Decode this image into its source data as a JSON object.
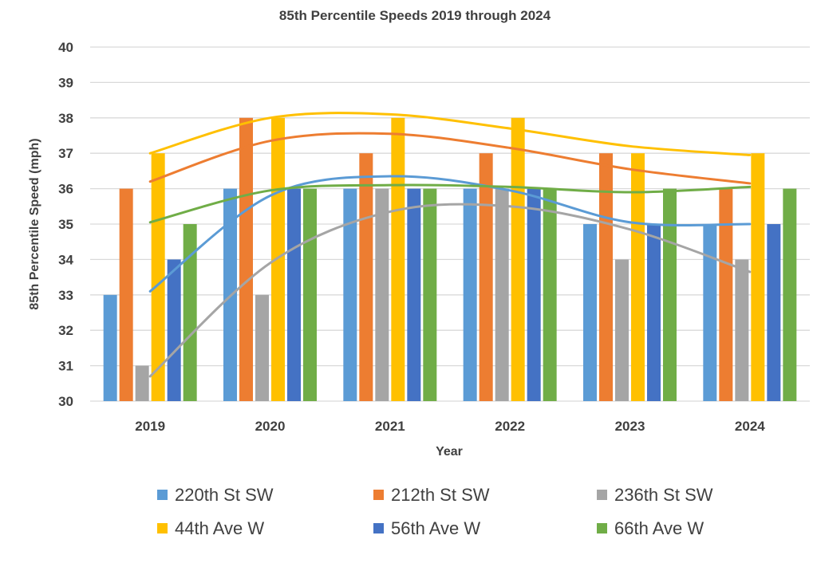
{
  "chart_data": {
    "type": "bar",
    "title": "85th Percentile Speeds 2019 through 2024",
    "xlabel": "Year",
    "ylabel": "85th Percentile Speed (mph)",
    "categories": [
      "2019",
      "2020",
      "2021",
      "2022",
      "2023",
      "2024"
    ],
    "ylim": [
      30,
      40
    ],
    "yticks": [
      30,
      31,
      32,
      33,
      34,
      35,
      36,
      37,
      38,
      39,
      40
    ],
    "grid": true,
    "legend_position": "bottom",
    "series": [
      {
        "name": "220th St SW",
        "color": "#5B9BD5",
        "values": [
          33,
          36,
          36,
          36,
          35,
          35
        ],
        "trend": [
          33.1,
          35.8,
          36.35,
          35.95,
          35.05,
          35.0
        ]
      },
      {
        "name": "212th St SW",
        "color": "#ED7D31",
        "values": [
          36,
          38,
          37,
          37,
          37,
          36
        ],
        "trend": [
          36.2,
          37.35,
          37.55,
          37.15,
          36.55,
          36.15
        ]
      },
      {
        "name": "236th St SW",
        "color": "#A5A5A5",
        "values": [
          31,
          33,
          36,
          36,
          34,
          34
        ],
        "trend": [
          30.7,
          33.9,
          35.35,
          35.5,
          34.85,
          33.65
        ]
      },
      {
        "name": "44th Ave W",
        "color": "#FFC000",
        "values": [
          37,
          38,
          38,
          38,
          37,
          37
        ],
        "trend": [
          37.0,
          38.0,
          38.1,
          37.7,
          37.2,
          36.95
        ]
      },
      {
        "name": "56th Ave W",
        "color": "#4472C4",
        "values": [
          34,
          36,
          36,
          36,
          35,
          35
        ],
        "trend": null
      },
      {
        "name": "66th Ave W",
        "color": "#70AD47",
        "values": [
          35,
          36,
          36,
          36,
          36,
          36
        ],
        "trend": [
          35.05,
          35.95,
          36.1,
          36.05,
          35.9,
          36.05
        ]
      }
    ]
  }
}
